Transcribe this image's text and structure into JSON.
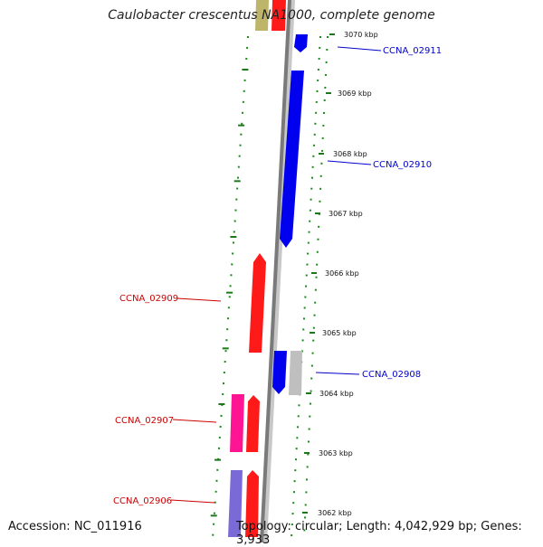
{
  "title": "Caulobacter crescentus NA1000, complete genome",
  "accession_text": "Accession: NC_011916",
  "topology_text": "Topology: circular; Length: 4,042,929 bp; Genes: 3,933",
  "colors": {
    "forward_gene": "#ff0000",
    "reverse_gene": "#0000ff",
    "backbone": "#808080",
    "ticks": "#1a7a1a",
    "label_forward": "#cc0000",
    "label_reverse": "#0000cc"
  },
  "scale_ticks": [
    {
      "label": "3070 kbp"
    },
    {
      "label": "3069 kbp"
    },
    {
      "label": "3068 kbp"
    },
    {
      "label": "3067 kbp"
    },
    {
      "label": "3066 kbp"
    },
    {
      "label": "3065 kbp"
    },
    {
      "label": "3064 kbp"
    },
    {
      "label": "3063 kbp"
    },
    {
      "label": "3062 kbp"
    }
  ],
  "gene_labels": [
    {
      "text": "CCNA_02911",
      "side": "right"
    },
    {
      "text": "CCNA_02910",
      "side": "right"
    },
    {
      "text": "CCNA_02909",
      "side": "left"
    },
    {
      "text": "CCNA_02908",
      "side": "right"
    },
    {
      "text": "CCNA_02907",
      "side": "left"
    },
    {
      "text": "CCNA_02906",
      "side": "left"
    }
  ]
}
